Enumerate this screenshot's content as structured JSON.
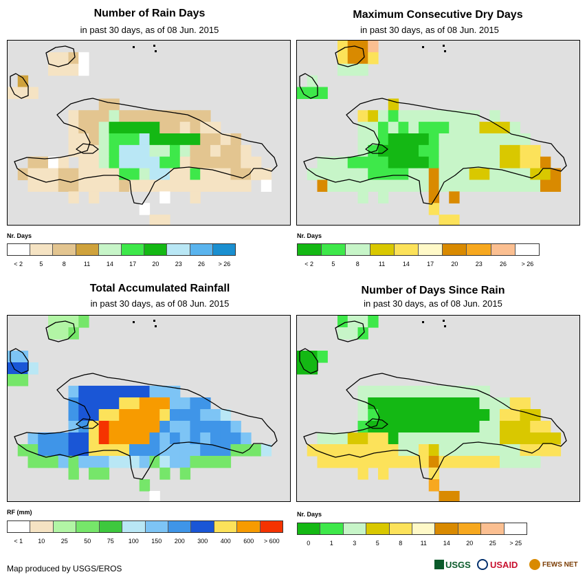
{
  "colors": {
    "ocean": "#e0e0e0",
    "coast": "#000000"
  },
  "panels": [
    {
      "id": "rain-days",
      "title": "Number of Rain Days",
      "subtitle": "in past 30 days, as of 08 Jun. 2015",
      "legend_title": "Nr. Days",
      "legend_colors": [
        "#ffffff",
        "#f5e3c3",
        "#e3c590",
        "#cfa23c",
        "#c7f5c8",
        "#3ee84a",
        "#14b814",
        "#b9e7f5",
        "#5ab4ee",
        "#1a8fd0"
      ],
      "legend_ticks": [
        "< 2",
        "5",
        "8",
        "11",
        "14",
        "17",
        "20",
        "23",
        "26",
        "> 26"
      ],
      "grid_rows": [
        "............................",
        "....BBCA....................",
        "....BBBA....................",
        ".D..........................",
        "BBB.........................",
        ".........CC.................",
        "......BCCCECCCCCCCCC........",
        "......BCCEGGGGGCCBCBB.......",
        "......BBCEFFFHGGGGGCCBC.....",
        "......BBBEFHHHEEFECCBCCB....",
        "..CCAB.BBEFHHHHFFBCCCCCBB...",
        ".CBBBCCBBBBFFEHHBBFBBBCCBB..",
        "..BBBCCBBBBCBBBBBBBBBBBB.A..",
        "......B.B......A..B.........",
        ".............A..............",
        "..............BB............"
      ]
    },
    {
      "id": "dry-days",
      "title": "Maximum Consecutive Dry Days",
      "subtitle": "in past 30 days, as of 08 Jun. 2015",
      "legend_title": "Nr. Days",
      "legend_colors": [
        "#14b814",
        "#3ee84a",
        "#c7f5c8",
        "#d9c800",
        "#fce25a",
        "#fff9c8",
        "#d98a00",
        "#f7a81f",
        "#fbbf91",
        "#ffffff"
      ],
      "legend_ticks": [
        "< 2",
        "5",
        "8",
        "11",
        "14",
        "17",
        "20",
        "23",
        "26",
        "> 26"
      ],
      "grid_rows": [
        "....EGGI....................",
        "....EGGE....................",
        "....CCC.....................",
        ".C..........................",
        "BBB.........................",
        ".........D..................",
        "......EDCBCCCCCCCC.C........",
        "......CCBCBCBBBCCCDDDC......",
        "......CCBAAAABCCCCCCCCC.....",
        "......CBAAAABBCCCCCCDDEE....",
        "..CCCBBBBAAAABCCCCCCDDEEG...",
        ".CCCCCCBBBBCCGCCCDDCCCCDDG..",
        "..GCCCCCCCCCCGCCCCCCCCCCGG..",
        "......C.C....G.G............",
        ".............E..............",
        "..............EE............"
      ]
    },
    {
      "id": "rainfall",
      "title": "Total Accumulated Rainfall",
      "subtitle": "in past 30 days, as of 08 Jun. 2015",
      "legend_title": "RF (mm)",
      "legend_colors": [
        "#ffffff",
        "#f5e3c3",
        "#b2f5a5",
        "#76e66a",
        "#3ec83e",
        "#b9e7f5",
        "#7dc4f5",
        "#3f95e8",
        "#1a56d6",
        "#fce25a",
        "#f79b00",
        "#f53300"
      ],
      "legend_ticks": [
        "< 1",
        "10",
        "25",
        "50",
        "75",
        "100",
        "150",
        "200",
        "300",
        "400",
        "600",
        "> 600"
      ],
      "grid_rows": [
        "....CCCD....................",
        "....CCD.....................",
        "............................",
        "GG..........................",
        "IIF.........................",
        "DD..........................",
        "......GIIIIIIIGGG...........",
        "......HIIIIJJKKKGGHH........",
        "......HIIJJKKKKJHHHGGF......",
        "......GHJLKKKKKHGGHHHHG.....",
        "..GHHHIIJLKKKKHGHGHGHHHG....",
        ".DDHHHIIJJJJHHHGGGGHHHDDDF..",
        "..DDDGDGGGFFFGDFGGDDDD......",
        "......D.DD.....D.D..........",
        ".............D..............",
        "..............A............."
      ]
    },
    {
      "id": "since-rain",
      "title": "Number of Days Since Rain",
      "subtitle": "in past 30 days, as of 08 Jun. 2015",
      "legend_title": "Nr. Days",
      "legend_colors": [
        "#14b814",
        "#3ee84a",
        "#c7f5c8",
        "#d9c800",
        "#fce25a",
        "#fff9c8",
        "#d98a00",
        "#f7a81f",
        "#fbbf91",
        "#ffffff"
      ],
      "legend_ticks": [
        "0",
        "1",
        "3",
        "5",
        "8",
        "11",
        "14",
        "20",
        "25",
        "> 25"
      ],
      "grid_rows": [
        "....BCCB....................",
        "....CCB.....................",
        "............................",
        "AAB.........................",
        "AA..........................",
        "............................",
        "......CCCCCCCCCCCCC.........",
        "......CAAAAAAAAAAACCCEE.....",
        "......CBAAAAAAAAAAACEEDD....",
        "......BAAAAAAAAAAACCDDDEE...",
        "..CCCDDEEACCCCCCCCCCDDDDDD..",
        ".EEEEEEEEECCEDCCCCCCCCEEEE..",
        "..EEEEEEEEEEEGEEEEEECCCC....",
        "......E.E....E..............",
        ".............H..............",
        "..............GG............"
      ]
    }
  ],
  "footer": {
    "credit": "Map produced by USGS/EROS",
    "logos": [
      "USGS",
      "USAID",
      "FEWS NET"
    ]
  }
}
